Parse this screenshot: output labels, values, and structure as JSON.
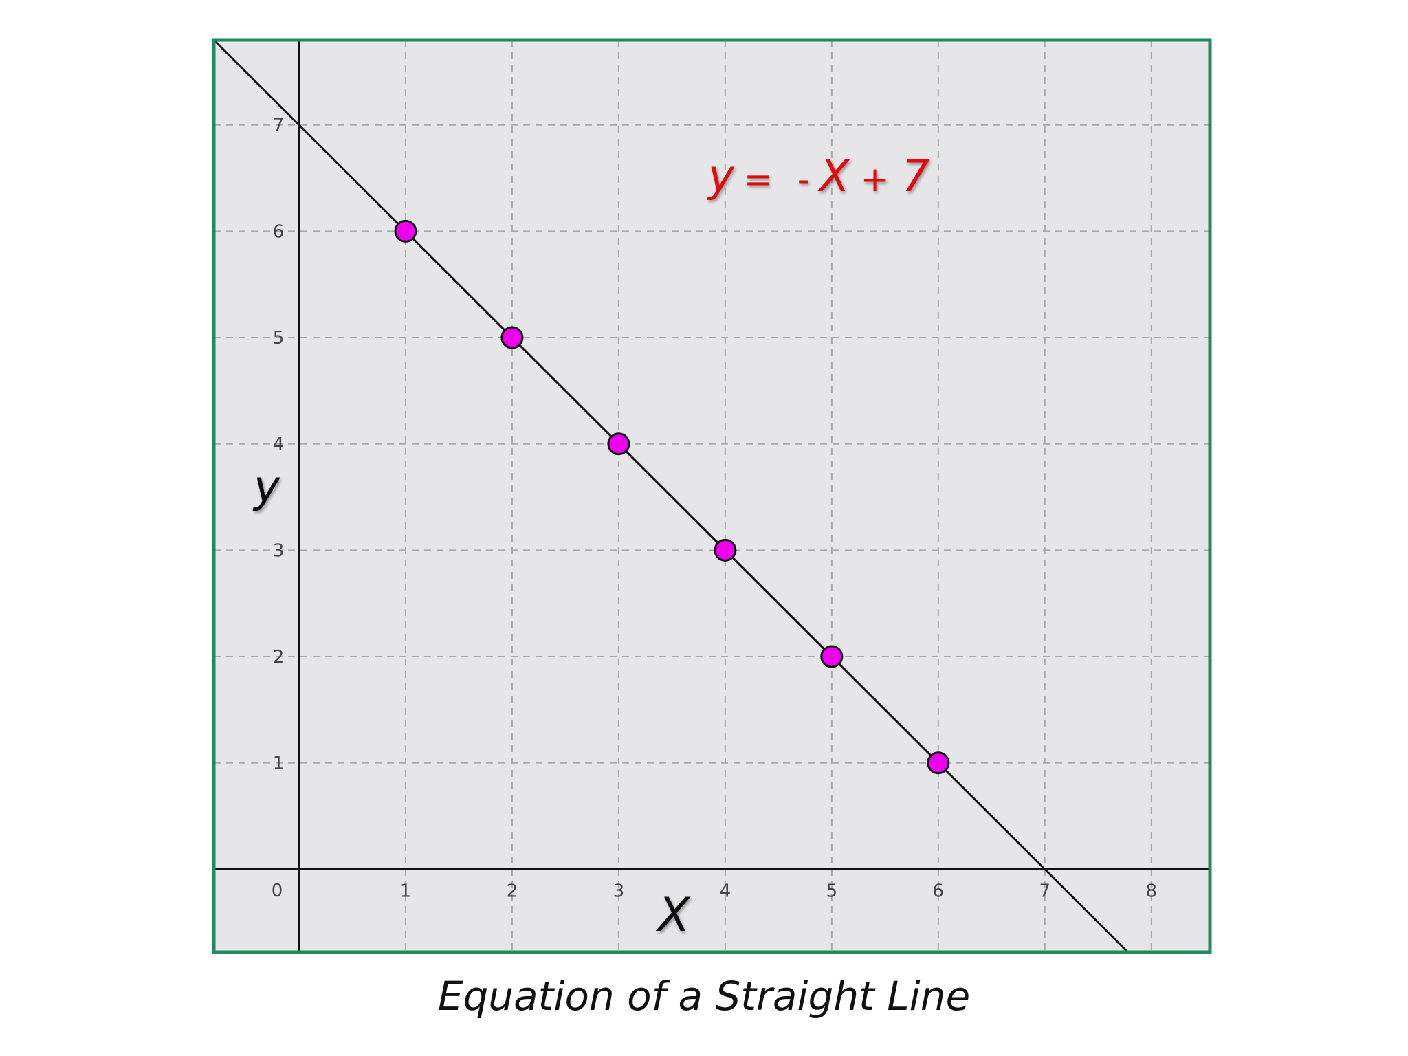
{
  "chart_data": {
    "type": "line",
    "title": "",
    "caption": "Equation of a Straight Line",
    "xlabel": "X",
    "ylabel": "y",
    "xlim": [
      -0.8,
      8.55
    ],
    "ylim": [
      -0.78,
      7.8
    ],
    "x_ticks": [
      1,
      2,
      3,
      4,
      5,
      6,
      7,
      8
    ],
    "y_ticks": [
      1,
      2,
      3,
      4,
      5,
      6,
      7
    ],
    "origin_label": "0",
    "grid": true,
    "line": {
      "slope": -1,
      "intercept": 7
    },
    "equation": {
      "y": "y",
      "eq": "=",
      "minus": "-",
      "x": "X",
      "plus": "+",
      "c": "7"
    },
    "points": [
      {
        "x": 1,
        "y": 6
      },
      {
        "x": 2,
        "y": 5
      },
      {
        "x": 3,
        "y": 4
      },
      {
        "x": 4,
        "y": 3
      },
      {
        "x": 5,
        "y": 2
      },
      {
        "x": 6,
        "y": 1
      }
    ],
    "colors": {
      "frame": "#1f8a5b",
      "plot_bg": "#e6e5e7",
      "grid": "#a9a9a9",
      "axis": "#111111",
      "line": "#111111",
      "point_fill": "#ee00ee",
      "point_stroke": "#111111",
      "equation": "#dd1111",
      "tick_label": "#444444"
    }
  }
}
